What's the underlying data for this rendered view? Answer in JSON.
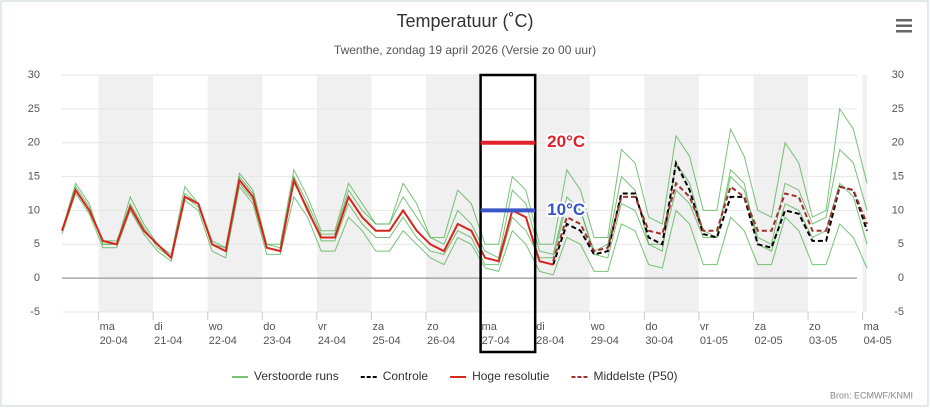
{
  "chart_data": {
    "type": "line",
    "title": "Temperatuur (˚C)",
    "subtitle": "Twenthe, zondag 19 april 2026 (Versie zo 00 uur)",
    "source": "Bron: ECMWF/KNMI",
    "x": [
      0.33,
      0.58,
      0.83,
      1.08,
      1.33,
      1.58,
      1.83,
      2.08,
      2.33,
      2.58,
      2.83,
      3.08,
      3.33,
      3.58,
      3.83,
      4.08,
      4.33,
      4.58,
      4.83,
      5.08,
      5.33,
      5.58,
      5.83,
      6.08,
      6.33,
      6.58,
      6.83,
      7.08,
      7.33,
      7.58,
      7.83,
      8.08,
      8.33,
      8.58,
      8.83,
      9.08,
      9.33,
      9.58,
      9.83,
      10.08,
      10.33,
      10.58,
      10.83,
      11.08,
      11.33,
      11.58,
      11.83,
      12.08,
      12.33,
      12.58,
      12.83,
      13.08,
      13.33,
      13.58,
      13.83,
      14.08,
      14.33,
      14.58,
      14.83,
      15.08
    ],
    "xlim": [
      0.33,
      15.08
    ],
    "xticks": [
      {
        "value": 1,
        "label": "ma",
        "date": "20-04"
      },
      {
        "value": 2,
        "label": "di",
        "date": "21-04"
      },
      {
        "value": 3,
        "label": "wo",
        "date": "22-04"
      },
      {
        "value": 4,
        "label": "do",
        "date": "23-04"
      },
      {
        "value": 5,
        "label": "vr",
        "date": "24-04"
      },
      {
        "value": 6,
        "label": "za",
        "date": "25-04"
      },
      {
        "value": 7,
        "label": "zo",
        "date": "26-04"
      },
      {
        "value": 8,
        "label": "ma",
        "date": "27-04"
      },
      {
        "value": 9,
        "label": "di",
        "date": "28-04"
      },
      {
        "value": 10,
        "label": "wo",
        "date": "29-04"
      },
      {
        "value": 11,
        "label": "do",
        "date": "30-04"
      },
      {
        "value": 12,
        "label": "vr",
        "date": "01-05"
      },
      {
        "value": 13,
        "label": "za",
        "date": "02-05"
      },
      {
        "value": 14,
        "label": "zo",
        "date": "03-05"
      },
      {
        "value": 15,
        "label": "ma",
        "date": "04-05"
      }
    ],
    "ylim": [
      -5,
      30
    ],
    "yticks": [
      -5,
      0,
      5,
      10,
      15,
      20,
      25,
      30
    ],
    "grid": true,
    "ensemble": {
      "name": "Verstoorde runs",
      "color": "#4cae4c",
      "members": [
        [
          7,
          14,
          11,
          5,
          5,
          12,
          8,
          5,
          3.5,
          13.5,
          11,
          5,
          4.5,
          15.5,
          13,
          5,
          5,
          16,
          12,
          7,
          7,
          14,
          11,
          8,
          8,
          14,
          11,
          6,
          6,
          13,
          11,
          5,
          5,
          15,
          13,
          5,
          5,
          16,
          13,
          6,
          6,
          19,
          17,
          9,
          8,
          21,
          18,
          10,
          10,
          22,
          18,
          10,
          9,
          20,
          17,
          9,
          10,
          25,
          22,
          14
        ],
        [
          6.5,
          12.5,
          9.5,
          4.5,
          4.5,
          10,
          6.5,
          4,
          2.5,
          11.5,
          10,
          4,
          3,
          13.5,
          11,
          3.5,
          3.5,
          12,
          9,
          4,
          4,
          9,
          7,
          4,
          4,
          7,
          5,
          3,
          2,
          6,
          5,
          1.5,
          1,
          7,
          5,
          1,
          0.5,
          6,
          5,
          1,
          1,
          8,
          7,
          2,
          1.5,
          10,
          8,
          2,
          2,
          9,
          7,
          2,
          2,
          9,
          7,
          2,
          2,
          8,
          6,
          1.5
        ],
        [
          7,
          13.5,
          10.5,
          5,
          5,
          11,
          7.5,
          4.5,
          3,
          12.5,
          11,
          5.5,
          4.5,
          15,
          12.5,
          5,
          4.5,
          15,
          11,
          6.5,
          6.5,
          13,
          10,
          8,
          8,
          12,
          9,
          6,
          5,
          10,
          8,
          4,
          3,
          13,
          11,
          4,
          3.5,
          12,
          10,
          4,
          5,
          15,
          13,
          5,
          4,
          17,
          14,
          7,
          6,
          15,
          13,
          6,
          5,
          14,
          13,
          8,
          9,
          19,
          17,
          10
        ],
        [
          7,
          13,
          10,
          5.5,
          5.5,
          10.5,
          7,
          5,
          3,
          12,
          10.5,
          5,
          4,
          14,
          11.5,
          4.5,
          4,
          14,
          10.5,
          5.5,
          5.5,
          11,
          8,
          6,
          6,
          9,
          6,
          4,
          3.5,
          7,
          6,
          2,
          2,
          9,
          7,
          3,
          3,
          11,
          10,
          3.5,
          3,
          11,
          10,
          5,
          5,
          13,
          11,
          6,
          6,
          16,
          14,
          5,
          4,
          11,
          10,
          6,
          7,
          14,
          12,
          5
        ]
      ]
    },
    "series": [
      {
        "name": "Controle",
        "color": "#000000",
        "dash": true,
        "values": [
          null,
          null,
          null,
          null,
          null,
          null,
          null,
          null,
          null,
          null,
          null,
          null,
          null,
          null,
          null,
          null,
          null,
          null,
          null,
          null,
          null,
          null,
          null,
          null,
          null,
          null,
          null,
          null,
          null,
          null,
          null,
          null,
          null,
          null,
          null,
          null,
          2,
          8,
          7,
          3.5,
          4,
          12.5,
          12.5,
          6,
          5,
          17,
          13,
          6.5,
          6,
          12,
          12,
          5,
          4.5,
          10,
          9.5,
          5.5,
          5.5,
          13.5,
          13,
          7
        ]
      },
      {
        "name": "Hoge resolutie",
        "color": "#d7261e",
        "dash": false,
        "values": [
          7,
          13,
          10,
          5.5,
          5,
          10.5,
          7,
          5,
          3,
          12,
          11,
          5,
          4,
          14.5,
          12,
          4.5,
          4,
          14.5,
          10,
          6,
          6,
          12,
          9,
          7,
          7,
          10,
          7,
          5,
          4,
          8,
          7,
          3,
          2.5,
          10,
          9,
          2.5,
          2,
          null,
          null,
          null,
          null,
          null,
          null,
          null,
          null,
          null,
          null,
          null,
          null,
          null,
          null,
          null,
          null,
          null,
          null,
          null,
          null,
          null,
          null,
          null
        ]
      },
      {
        "name": "Middelste (P50)",
        "color": "#a0322d",
        "dash": true,
        "values": [
          null,
          null,
          null,
          null,
          null,
          null,
          null,
          null,
          null,
          null,
          null,
          null,
          null,
          null,
          null,
          null,
          null,
          null,
          null,
          null,
          null,
          null,
          null,
          null,
          null,
          null,
          null,
          null,
          null,
          null,
          null,
          null,
          null,
          null,
          null,
          null,
          2.5,
          9,
          8,
          4,
          4.5,
          12,
          12,
          7,
          6.5,
          14,
          12,
          7,
          7,
          13.5,
          12,
          7,
          7,
          12.5,
          12,
          7,
          7,
          13.5,
          13,
          8
        ]
      }
    ],
    "highlight": [
      8,
      9
    ],
    "annotations": [
      {
        "text": "20°C",
        "value": 20,
        "color": "#e0202a"
      },
      {
        "text": "10°C",
        "value": 10,
        "color": "#3a55c4"
      }
    ]
  }
}
